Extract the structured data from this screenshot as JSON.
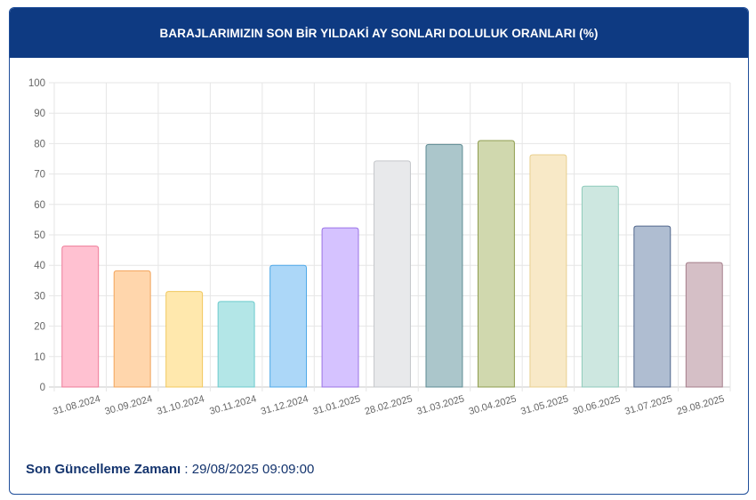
{
  "header": {
    "title": "BARAJLARIMIZIN SON BİR YILDAKİ AY SONLARI DOLULUK ORANLARI (%)"
  },
  "footer": {
    "label": "Son Güncelleme Zamanı",
    "separator": " : ",
    "value": "29/08/2025 09:09:00"
  },
  "chart_data": {
    "type": "bar",
    "title": "BARAJLARIMIZIN SON BİR YILDAKİ AY SONLARI DOLULUK ORANLARI (%)",
    "xlabel": "",
    "ylabel": "",
    "ylim": [
      0,
      100
    ],
    "yticks": [
      "0",
      "10",
      "20",
      "30",
      "40",
      "50",
      "60",
      "70",
      "80",
      "90",
      "100"
    ],
    "grid": true,
    "legend": "none",
    "categories": [
      "31.08.2024",
      "30.09.2024",
      "31.10.2024",
      "30.11.2024",
      "31.12.2024",
      "31.01.2025",
      "28.02.2025",
      "31.03.2025",
      "30.04.2025",
      "31.05.2025",
      "30.06.2025",
      "31.07.2025",
      "29.08.2025"
    ],
    "values": [
      46.3,
      38.2,
      31.4,
      28.1,
      40.0,
      52.3,
      74.3,
      79.7,
      81.0,
      76.3,
      66.0,
      52.9,
      40.9
    ],
    "colors": [
      {
        "fill": "#ffc1d1",
        "stroke": "#ee7b98"
      },
      {
        "fill": "#ffd6ac",
        "stroke": "#f2a45c"
      },
      {
        "fill": "#ffe8ad",
        "stroke": "#f0c75d"
      },
      {
        "fill": "#b3e6e7",
        "stroke": "#6ccbcd"
      },
      {
        "fill": "#acd7f8",
        "stroke": "#4ea8e8"
      },
      {
        "fill": "#d5c2ff",
        "stroke": "#9a73e6"
      },
      {
        "fill": "#e8e9eb",
        "stroke": "#c5c7cb"
      },
      {
        "fill": "#abc6cb",
        "stroke": "#5e8b93"
      },
      {
        "fill": "#d0d8ae",
        "stroke": "#8e9c4e"
      },
      {
        "fill": "#f8e9c7",
        "stroke": "#e8cf8e"
      },
      {
        "fill": "#cde7e0",
        "stroke": "#8ecabb"
      },
      {
        "fill": "#afbdd1",
        "stroke": "#52678d"
      },
      {
        "fill": "#d5bfc6",
        "stroke": "#a57e8a"
      }
    ]
  }
}
